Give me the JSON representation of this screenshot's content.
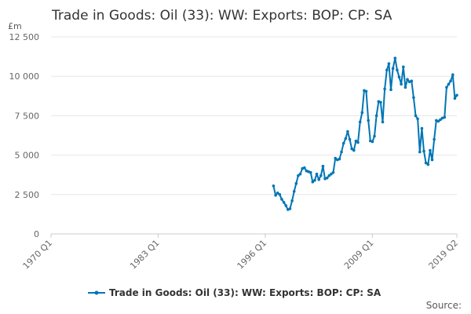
{
  "chart_data": {
    "type": "line",
    "title": "Trade in Goods: Oil (33): WW: Exports: BOP: CP: SA",
    "ylabel": "£m",
    "xlabel": "",
    "ylim": [
      0,
      12500
    ],
    "yticks": [
      0,
      2500,
      5000,
      7500,
      10000,
      12500
    ],
    "ytick_labels": [
      "0",
      "2 500",
      "5 000",
      "7 500",
      "10 000",
      "12 500"
    ],
    "x_range": [
      "1970 Q1",
      "2019 Q2"
    ],
    "xtick_labels": [
      "1970 Q1",
      "1983 Q1",
      "1996 Q1",
      "2009 Q1",
      "2019 Q2"
    ],
    "grid": true,
    "legend_position": "bottom",
    "series": [
      {
        "name": "Trade in Goods: Oil (33): WW: Exports: BOP: CP: SA",
        "color": "#0075b5",
        "x": [
          "1997 Q1",
          "1997 Q2",
          "1997 Q3",
          "1997 Q4",
          "1998 Q1",
          "1998 Q2",
          "1998 Q3",
          "1998 Q4",
          "1999 Q1",
          "1999 Q2",
          "1999 Q3",
          "1999 Q4",
          "2000 Q1",
          "2000 Q2",
          "2000 Q3",
          "2000 Q4",
          "2001 Q1",
          "2001 Q2",
          "2001 Q3",
          "2001 Q4",
          "2002 Q1",
          "2002 Q2",
          "2002 Q3",
          "2002 Q4",
          "2003 Q1",
          "2003 Q2",
          "2003 Q3",
          "2003 Q4",
          "2004 Q1",
          "2004 Q2",
          "2004 Q3",
          "2004 Q4",
          "2005 Q1",
          "2005 Q2",
          "2005 Q3",
          "2005 Q4",
          "2006 Q1",
          "2006 Q2",
          "2006 Q3",
          "2006 Q4",
          "2007 Q1",
          "2007 Q2",
          "2007 Q3",
          "2007 Q4",
          "2008 Q1",
          "2008 Q2",
          "2008 Q3",
          "2008 Q4",
          "2009 Q1",
          "2009 Q2",
          "2009 Q3",
          "2009 Q4",
          "2010 Q1",
          "2010 Q2",
          "2010 Q3",
          "2010 Q4",
          "2011 Q1",
          "2011 Q2",
          "2011 Q3",
          "2011 Q4",
          "2012 Q1",
          "2012 Q2",
          "2012 Q3",
          "2012 Q4",
          "2013 Q1",
          "2013 Q2",
          "2013 Q3",
          "2013 Q4",
          "2014 Q1",
          "2014 Q2",
          "2014 Q3",
          "2014 Q4",
          "2015 Q1",
          "2015 Q2",
          "2015 Q3",
          "2015 Q4",
          "2016 Q1",
          "2016 Q2",
          "2016 Q3",
          "2016 Q4",
          "2017 Q1",
          "2017 Q2",
          "2017 Q3",
          "2017 Q4",
          "2018 Q1",
          "2018 Q2",
          "2018 Q3",
          "2018 Q4",
          "2019 Q1",
          "2019 Q2"
        ],
        "values": [
          3050,
          2450,
          2600,
          2500,
          2200,
          2000,
          1800,
          1550,
          1600,
          2100,
          2700,
          3200,
          3700,
          3800,
          4150,
          4200,
          4000,
          3950,
          3900,
          3300,
          3400,
          3800,
          3450,
          3700,
          4300,
          3500,
          3550,
          3700,
          3800,
          3900,
          4800,
          4700,
          4750,
          5200,
          5750,
          6050,
          6500,
          6000,
          5400,
          5300,
          5900,
          5800,
          7100,
          7700,
          9100,
          9050,
          7200,
          5900,
          5850,
          6200,
          7500,
          8400,
          8350,
          7100,
          9200,
          10400,
          10800,
          9150,
          10500,
          11150,
          10400,
          9950,
          9500,
          10600,
          9300,
          9800,
          9650,
          9700,
          8650,
          7500,
          7300,
          5200,
          6700,
          5250,
          4500,
          4400,
          5300,
          4700,
          6000,
          7200,
          7150,
          7250,
          7350,
          7400,
          9300,
          9500,
          9700,
          10100,
          8600,
          8800
        ]
      }
    ]
  },
  "legend": {
    "label": "Trade in Goods: Oil (33): WW: Exports: BOP: CP: SA"
  },
  "source": {
    "label": "Source:"
  }
}
